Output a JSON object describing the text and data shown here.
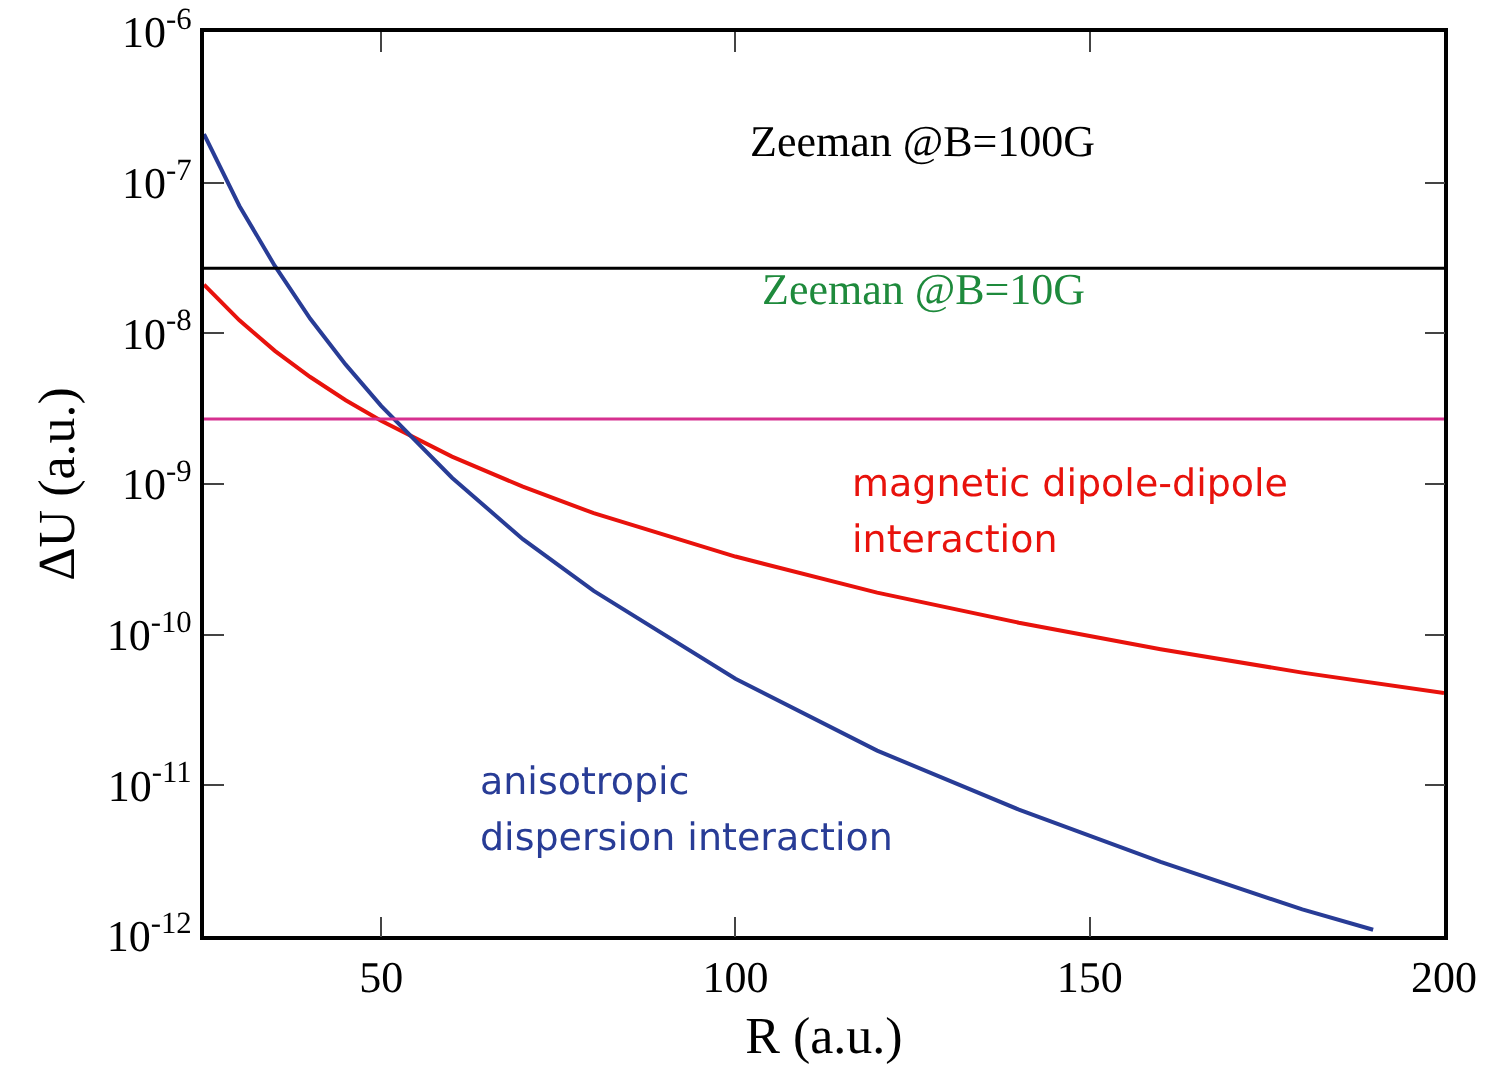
{
  "chart_data": {
    "type": "line",
    "xlabel": "R (a.u.)",
    "ylabel": "ΔU (a.u.)",
    "log": "y",
    "xlim": [
      25,
      200
    ],
    "xticks": [
      50,
      100,
      150,
      200
    ],
    "ylim": [
      1e-12,
      1e-06
    ],
    "yticks": [
      {
        "value": 1e-12,
        "label": "10$^{-12}$"
      },
      {
        "value": 1e-11,
        "label": "10$^{-11}$"
      },
      {
        "value": 1e-10,
        "label": "10$^{-10}$"
      },
      {
        "value": 1e-09,
        "label": "10$^{-9}$"
      },
      {
        "value": 1e-08,
        "label": "10$^{-8}$"
      },
      {
        "value": 1e-07,
        "label": "10$^{-7}$"
      },
      {
        "value": 1e-06,
        "label": "10$^{-6}$"
      }
    ],
    "grid": false,
    "legend": false,
    "marker": "none",
    "line_style": "solid",
    "x": [
      25,
      30,
      35,
      40,
      45,
      50,
      60,
      70,
      80,
      100,
      120,
      140,
      160,
      180,
      200
    ],
    "series": [
      {
        "name": "magnetic dipole-dipole interaction",
        "color": "#e8120c",
        "values": [
          2.1e-08,
          1.22e-08,
          7.65e-09,
          5.13e-09,
          3.6e-09,
          2.63e-09,
          1.52e-09,
          9.6e-10,
          6.4e-10,
          3.3e-10,
          1.9e-10,
          1.2e-10,
          8e-11,
          5.6e-11,
          4.1e-11
        ]
      },
      {
        "name": "anisotropic dispersion interaction",
        "color": "#283c96",
        "x": [
          25,
          30,
          35,
          40,
          45,
          50,
          60,
          70,
          80,
          100,
          120,
          140,
          160,
          180,
          190
        ],
        "values": [
          2.1e-07,
          7e-08,
          2.8e-08,
          1.25e-08,
          6.2e-09,
          3.3e-09,
          1.1e-09,
          4.3e-10,
          1.95e-10,
          5.1e-11,
          1.7e-11,
          6.9e-12,
          3.1e-12,
          1.5e-12,
          1.1e-12
        ]
      }
    ],
    "ref_lines": [
      {
        "axis": "y",
        "value": 2.7e-08,
        "color": "#000000"
      },
      {
        "axis": "y",
        "value": 2.7e-09,
        "color": "#d6308f"
      }
    ],
    "annotations": [
      "Zeeman @B=100G",
      "Zeeman @B=10G"
    ]
  }
}
